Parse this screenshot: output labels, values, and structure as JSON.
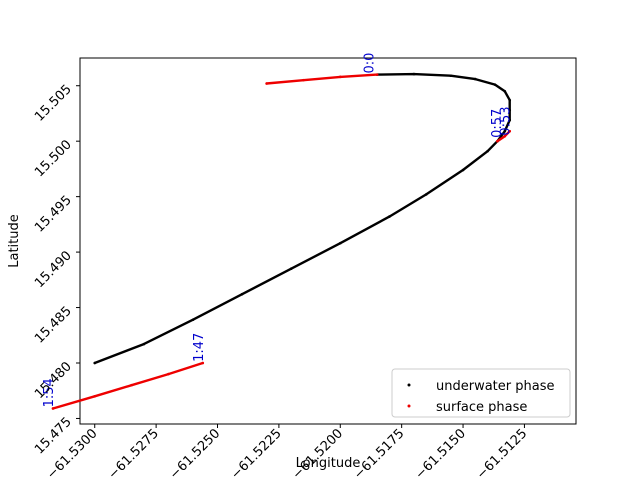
{
  "chart_data": {
    "type": "scatter",
    "title": "",
    "xlabel": "Longitude",
    "ylabel": "Latitude",
    "xlim": [
      -61.5306,
      -61.5104
    ],
    "ylim": [
      15.4745,
      15.5075
    ],
    "xticks": [
      -61.53,
      -61.5275,
      -61.525,
      -61.5225,
      -61.52,
      -61.5175,
      -61.515,
      -61.5125
    ],
    "xtick_labels": [
      "−61.5300",
      "−61.5275",
      "−61.5250",
      "−61.5225",
      "−61.5200",
      "−61.5175",
      "−61.5150",
      "−61.5125"
    ],
    "yticks": [
      15.475,
      15.48,
      15.485,
      15.49,
      15.495,
      15.5,
      15.505
    ],
    "ytick_labels": [
      "15.475",
      "15.480",
      "15.485",
      "15.490",
      "15.495",
      "15.500",
      "15.505"
    ],
    "grid": false,
    "legend": {
      "position": "lower-right",
      "entries": [
        "underwater phase",
        "surface phase"
      ]
    },
    "series": [
      {
        "name": "underwater phase",
        "color": "#000000",
        "points": [
          [
            -61.5185,
            15.506
          ],
          [
            -61.517,
            15.50605
          ],
          [
            -61.5155,
            15.5059
          ],
          [
            -61.5145,
            15.5056
          ],
          [
            -61.5137,
            15.5051
          ],
          [
            -61.5133,
            15.5045
          ],
          [
            -61.5131,
            15.5037
          ],
          [
            -61.5131,
            15.5028
          ],
          [
            -61.5131,
            15.5019
          ],
          [
            -61.5133,
            15.5009
          ],
          [
            -61.5136,
            15.5
          ],
          [
            -61.514,
            15.4991
          ],
          [
            -61.515,
            15.4974
          ],
          [
            -61.5165,
            15.4952
          ],
          [
            -61.518,
            15.4932
          ],
          [
            -61.52,
            15.4908
          ],
          [
            -61.522,
            15.4885
          ],
          [
            -61.524,
            15.4862
          ],
          [
            -61.526,
            15.4839
          ],
          [
            -61.528,
            15.4817
          ],
          [
            -61.53,
            15.48
          ]
        ]
      },
      {
        "name": "surface phase",
        "color": "#ee0000",
        "segments": [
          [
            [
              -61.523,
              15.5052
            ],
            [
              -61.5215,
              15.5055
            ],
            [
              -61.52,
              15.5058
            ],
            [
              -61.5185,
              15.506
            ]
          ],
          [
            [
              -61.5136,
              15.5
            ],
            [
              -61.5133,
              15.50045
            ],
            [
              -61.5131,
              15.5009
            ]
          ],
          [
            [
              -61.5256,
              15.48
            ],
            [
              -61.527,
              15.479
            ],
            [
              -61.5285,
              15.478
            ],
            [
              -61.53,
              15.477
            ],
            [
              -61.5317,
              15.4759
            ]
          ]
        ]
      }
    ],
    "annotations": [
      {
        "text": "0:0",
        "x": -61.51865,
        "y": 15.5061
      },
      {
        "text": "0:53",
        "x": -61.5131,
        "y": 15.5005
      },
      {
        "text": "0:57",
        "x": -61.51345,
        "y": 15.5003
      },
      {
        "text": "1:47",
        "x": -61.5256,
        "y": 15.4801
      },
      {
        "text": "1:54",
        "x": -61.5317,
        "y": 15.476
      }
    ]
  }
}
